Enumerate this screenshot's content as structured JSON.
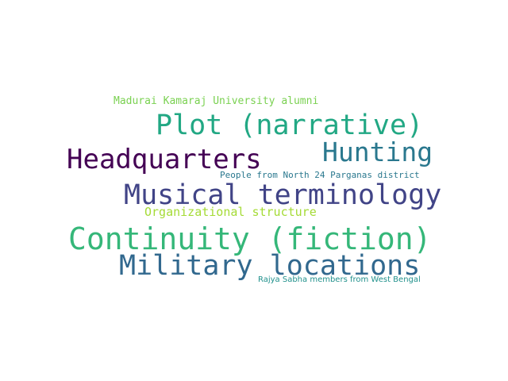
{
  "words": [
    {
      "id": "madurai",
      "text": "Madurai Kamaraj University alumni",
      "color": "#7ad151"
    },
    {
      "id": "plot",
      "text": "Plot (narrative)",
      "color": "#22a884"
    },
    {
      "id": "hunting",
      "text": "Hunting",
      "color": "#2a788e"
    },
    {
      "id": "hq",
      "text": "Headquarters",
      "color": "#440154"
    },
    {
      "id": "people",
      "text": "People from North 24 Parganas district",
      "color": "#2a788e"
    },
    {
      "id": "musical",
      "text": "Musical terminology",
      "color": "#414487"
    },
    {
      "id": "org",
      "text": "Organizational structure",
      "color": "#a5db36"
    },
    {
      "id": "continuity",
      "text": "Continuity (fiction)",
      "color": "#35b779"
    },
    {
      "id": "military",
      "text": "Military locations",
      "color": "#31688e"
    },
    {
      "id": "rajya",
      "text": "Rajya Sabha members from West Bengal",
      "color": "#21918c"
    }
  ]
}
